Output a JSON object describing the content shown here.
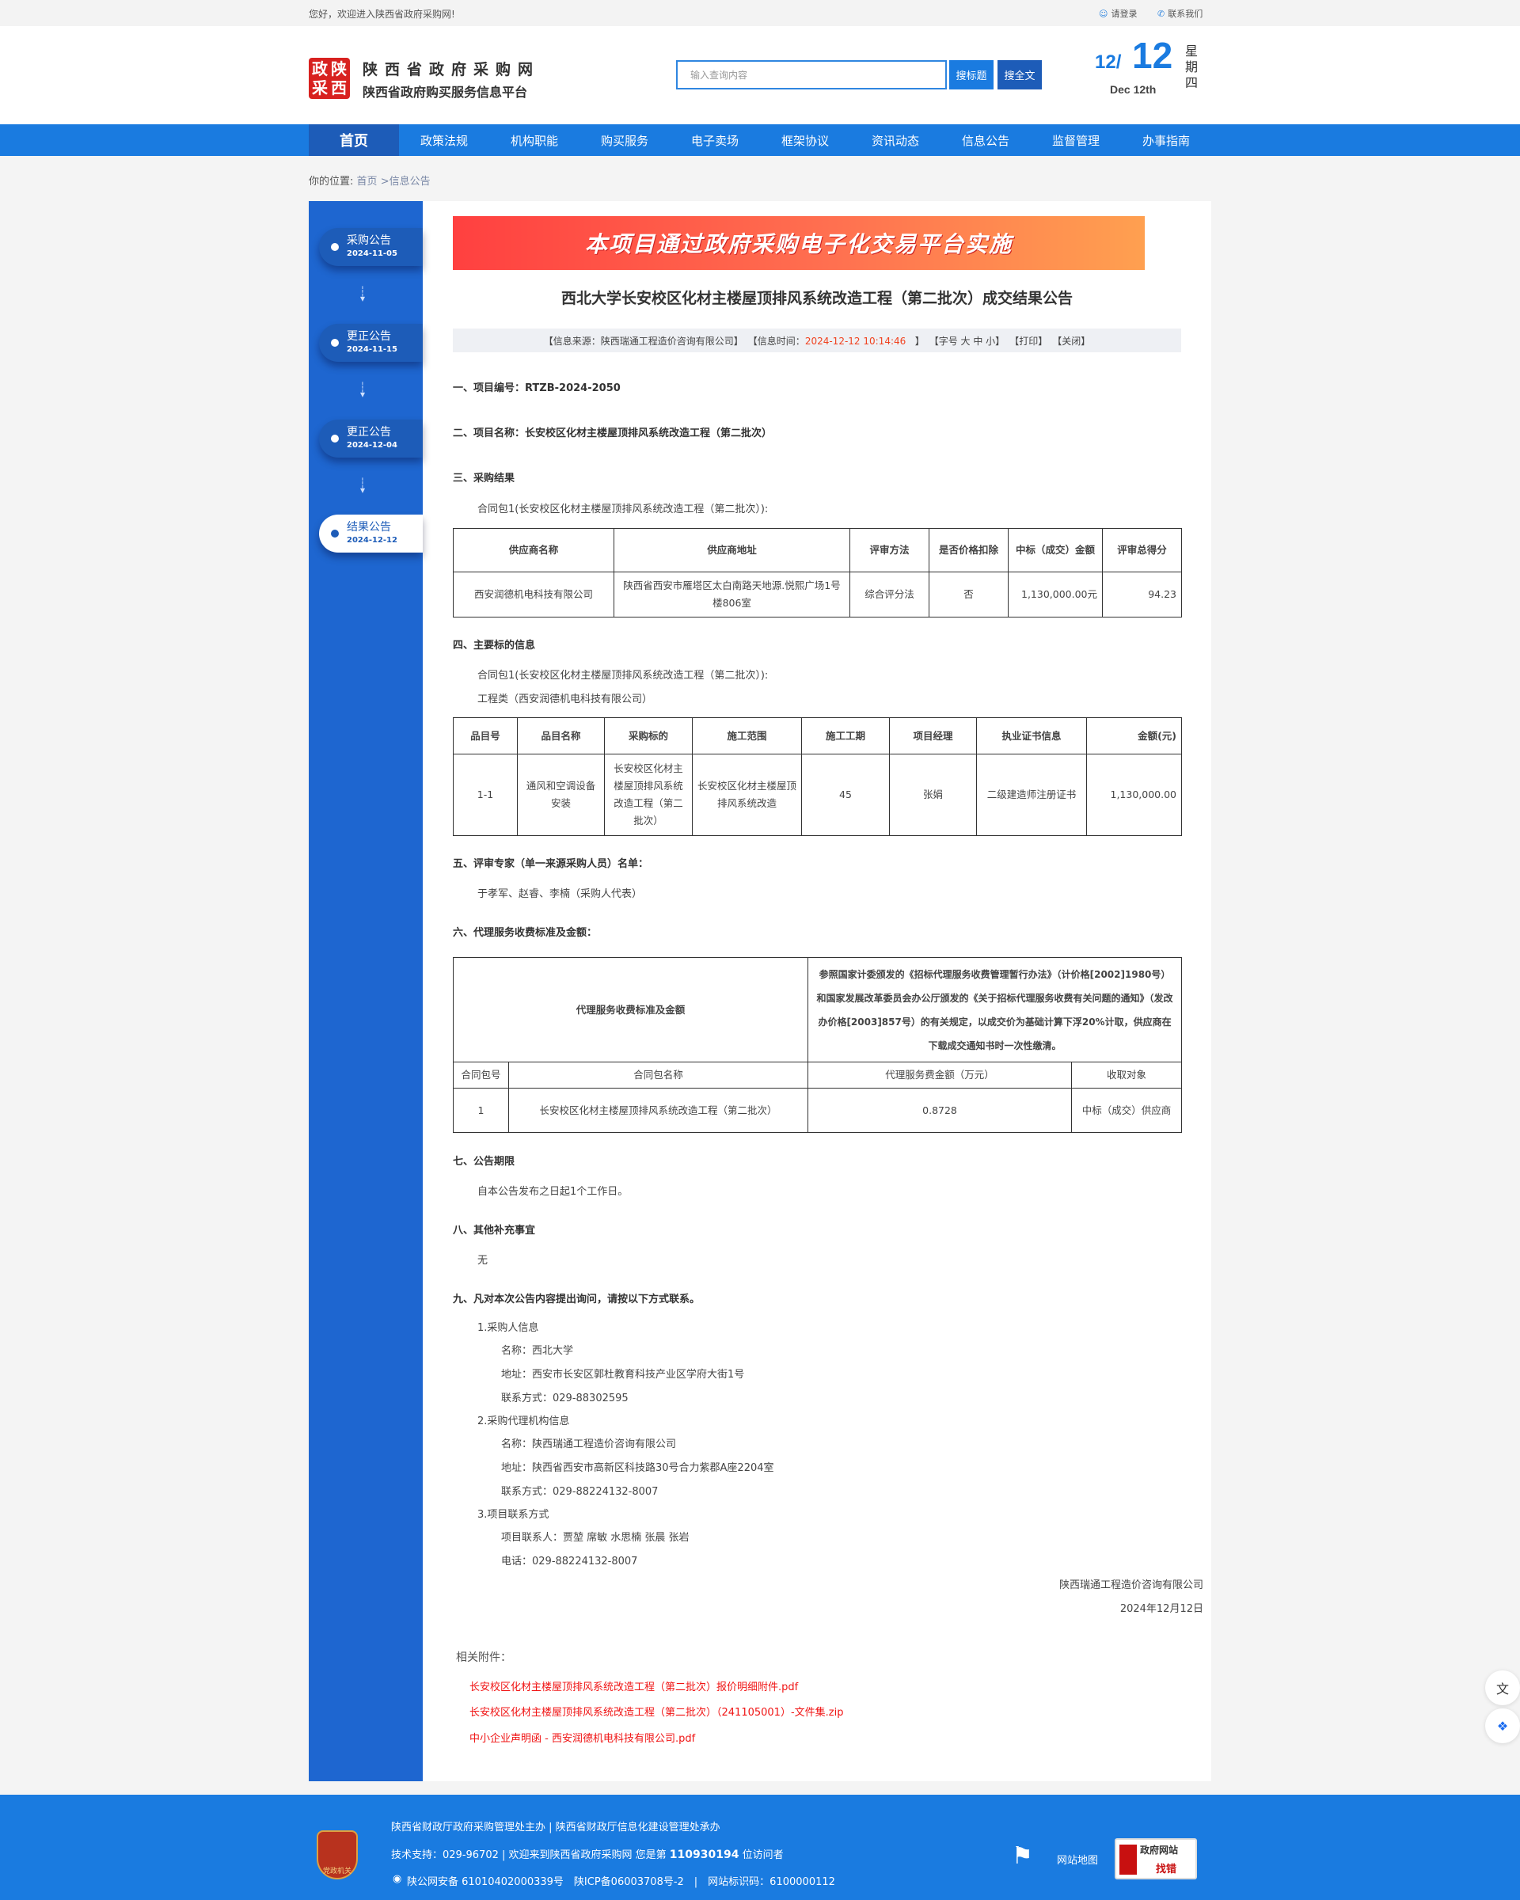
{
  "topbar": {
    "welcome": "您好，欢迎进入陕西省政府采购网!",
    "login": "请登录",
    "contact": "联系我们"
  },
  "header": {
    "logo_chars": [
      "政",
      "陕",
      "采",
      "西"
    ],
    "site_name": "陕西省政府采购网",
    "site_sub": "陕西省政府购买服务信息平台",
    "search_placeholder": "输入查询内容",
    "btn_title": "搜标题",
    "btn_full": "搜全文",
    "date_month": "12/",
    "date_day": "12",
    "date_en": "Dec 12th",
    "weekday": "星期四"
  },
  "nav": [
    "首页",
    "政策法规",
    "机构职能",
    "购买服务",
    "电子卖场",
    "框架协议",
    "资讯动态",
    "信息公告",
    "监督管理",
    "办事指南"
  ],
  "breadcrumb": {
    "label": "你的位置:",
    "home": "首页",
    "current": ">信息公告"
  },
  "sidebar": [
    {
      "title": "采购公告",
      "date": "2024-11-05"
    },
    {
      "title": "更正公告",
      "date": "2024-11-15"
    },
    {
      "title": "更正公告",
      "date": "2024-12-04"
    },
    {
      "title": "结果公告",
      "date": "2024-12-12",
      "active": true
    }
  ],
  "banner": "本项目通过政府采购电子化交易平台实施",
  "title": "西北大学长安校区化材主楼屋顶排风系统改造工程（第二批次）成交结果公告",
  "info": {
    "source": "【信息来源：陕西瑞通工程造价咨询有限公司】",
    "time_label": "【信息时间：",
    "time": "2024-12-12 10:14:46",
    "time_end": "】",
    "font": "【字号 大 中 小】",
    "print": "【打印】",
    "close": "【关闭】"
  },
  "s1": "一、项目编号：RTZB-2024-2050",
  "s2": "二、项目名称：长安校区化材主楼屋顶排风系统改造工程（第二批次）",
  "s3": "三、采购结果",
  "pkg": "合同包1(长安校区化材主楼屋顶排风系统改造工程（第二批次）):",
  "t1": {
    "headers": [
      "供应商名称",
      "供应商地址",
      "评审方法",
      "是否价格扣除",
      "中标（成交）金额",
      "评审总得分"
    ],
    "row": [
      "西安润德机电科技有限公司",
      "陕西省西安市雁塔区太白南路天地源.悦熙广场1号楼806室",
      "综合评分法",
      "否",
      "1,130,000.00元",
      "94.23"
    ]
  },
  "s4": "四、主要标的信息",
  "s4_type": "工程类（西安润德机电科技有限公司）",
  "t2": {
    "headers": [
      "品目号",
      "品目名称",
      "采购标的",
      "施工范围",
      "施工工期",
      "项目经理",
      "执业证书信息",
      "金额(元)"
    ],
    "row": [
      "1-1",
      "通风和空调设备安装",
      "长安校区化材主楼屋顶排风系统改造工程（第二批次）",
      "长安校区化材主楼屋顶排风系统改造",
      "45",
      "张娟",
      "二级建造师注册证书",
      "1,130,000.00"
    ]
  },
  "s5": "五、评审专家（单一来源采购人员）名单：",
  "s5_list": "于孝军、赵睿、李楠（采购人代表）",
  "s6": "六、代理服务收费标准及金额：",
  "t3": {
    "label": "代理服务收费标准及金额",
    "desc": "参照国家计委颁发的《招标代理服务收费管理暂行办法》（计价格[2002]1980号）和国家发展改革委员会办公厅颁发的《关于招标代理服务收费有关问题的通知》（发改办价格[2003]857号）的有关规定，以成交价为基础计算下浮20%计取，供应商在下载成交通知书时一次性缴清。",
    "headers": [
      "合同包号",
      "合同包名称",
      "代理服务费金额（万元）",
      "收取对象"
    ],
    "row": [
      "1",
      "长安校区化材主楼屋顶排风系统改造工程（第二批次）",
      "0.8728",
      "中标（成交）供应商"
    ]
  },
  "s7": "七、公告期限",
  "s7_text": "自本公告发布之日起1个工作日。",
  "s8": "八、其他补充事宜",
  "s8_text": "无",
  "s9": "九、凡对本次公告内容提出询问，请按以下方式联系。",
  "contacts": {
    "c1": "1.采购人信息",
    "c1_name": "名称：西北大学",
    "c1_addr": "地址：西安市长安区郭杜教育科技产业区学府大街1号",
    "c1_tel": "联系方式：029-88302595",
    "c2": "2.采购代理机构信息",
    "c2_name": "名称：陕西瑞通工程造价咨询有限公司",
    "c2_addr": "地址：陕西省西安市高新区科技路30号合力紫郡A座2204室",
    "c2_tel": "联系方式：029-88224132-8007",
    "c3": "3.项目联系方式",
    "c3_people": "项目联系人：贾堃 席敏 水思楠 张晨 张岩",
    "c3_tel": "电话：029-88224132-8007"
  },
  "sign": {
    "org": "陕西瑞通工程造价咨询有限公司",
    "date": "2024年12月12日"
  },
  "attachments": {
    "label": "相关附件：",
    "files": [
      "长安校区化材主楼屋顶排风系统改造工程（第二批次）报价明细附件.pdf",
      "长安校区化材主楼屋顶排风系统改造工程（第二批次）（241105001）-文件集.zip",
      "中小企业声明函 - 西安润德机电科技有限公司.pdf"
    ]
  },
  "footer": {
    "line1": "陕西省财政厅政府采购管理处主办 | 陕西省财政厅信息化建设管理处承办",
    "line2_a": "技术支持：029-96702 | 欢迎来到陕西省政府采购网 您是第 ",
    "visitors": "110930194",
    "line2_b": " 位访问者",
    "line3": "陕公网安备 61010402000339号　陕ICP备06003708号-2　|　网站标识码：6100000112",
    "badge": "党政机关",
    "sitemap": "网站地图",
    "jiucuo_top": "政府网站",
    "jiucuo_bottom": "找错"
  },
  "colors": {
    "primary": "#1a7be0",
    "nav_active": "#1d5cb8",
    "sidebar": "#1e66d0",
    "link_red": "#f01414",
    "time_red": "#f0421f"
  }
}
